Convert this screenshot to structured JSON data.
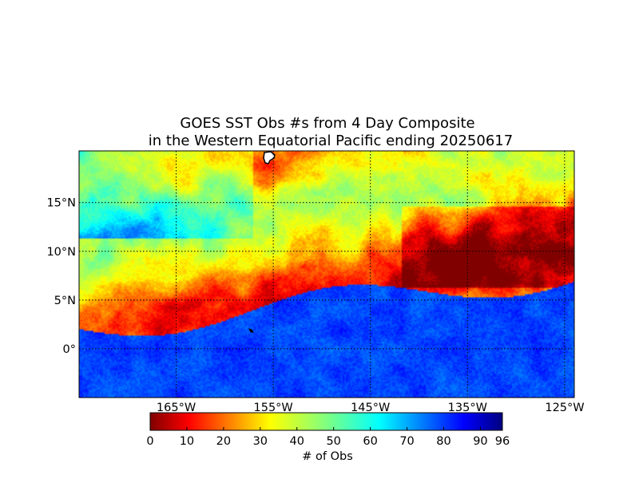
{
  "title": {
    "line1": "GOES SST Obs #s from 4 Day Composite",
    "line2": "in the Western Equatorial Pacific ending 20250617"
  },
  "map": {
    "lon_range": [
      -175,
      -124
    ],
    "lat_range": [
      -5,
      20.3
    ],
    "lat_ticks": [
      {
        "value": 15,
        "label": "15°N"
      },
      {
        "value": 10,
        "label": "10°N"
      },
      {
        "value": 5,
        "label": "5°N"
      },
      {
        "value": 0,
        "label": "0°"
      }
    ],
    "lon_ticks": [
      {
        "value": -165,
        "label": "165°W"
      },
      {
        "value": -155,
        "label": "155°W"
      },
      {
        "value": -145,
        "label": "145°W"
      },
      {
        "value": -135,
        "label": "135°W"
      },
      {
        "value": -125,
        "label": "125°W"
      }
    ],
    "gridlines": "dotted"
  },
  "colorbar": {
    "min": 0,
    "max": 96,
    "ticks": [
      {
        "value": 0,
        "label": "0"
      },
      {
        "value": 10,
        "label": "10"
      },
      {
        "value": 20,
        "label": "20"
      },
      {
        "value": 30,
        "label": "30"
      },
      {
        "value": 40,
        "label": "40"
      },
      {
        "value": 50,
        "label": "50"
      },
      {
        "value": 60,
        "label": "60"
      },
      {
        "value": 70,
        "label": "70"
      },
      {
        "value": 80,
        "label": "80"
      },
      {
        "value": 90,
        "label": "90"
      },
      {
        "value": 96,
        "label": "96"
      }
    ],
    "label": "# of Obs",
    "colormap": "jet"
  }
}
